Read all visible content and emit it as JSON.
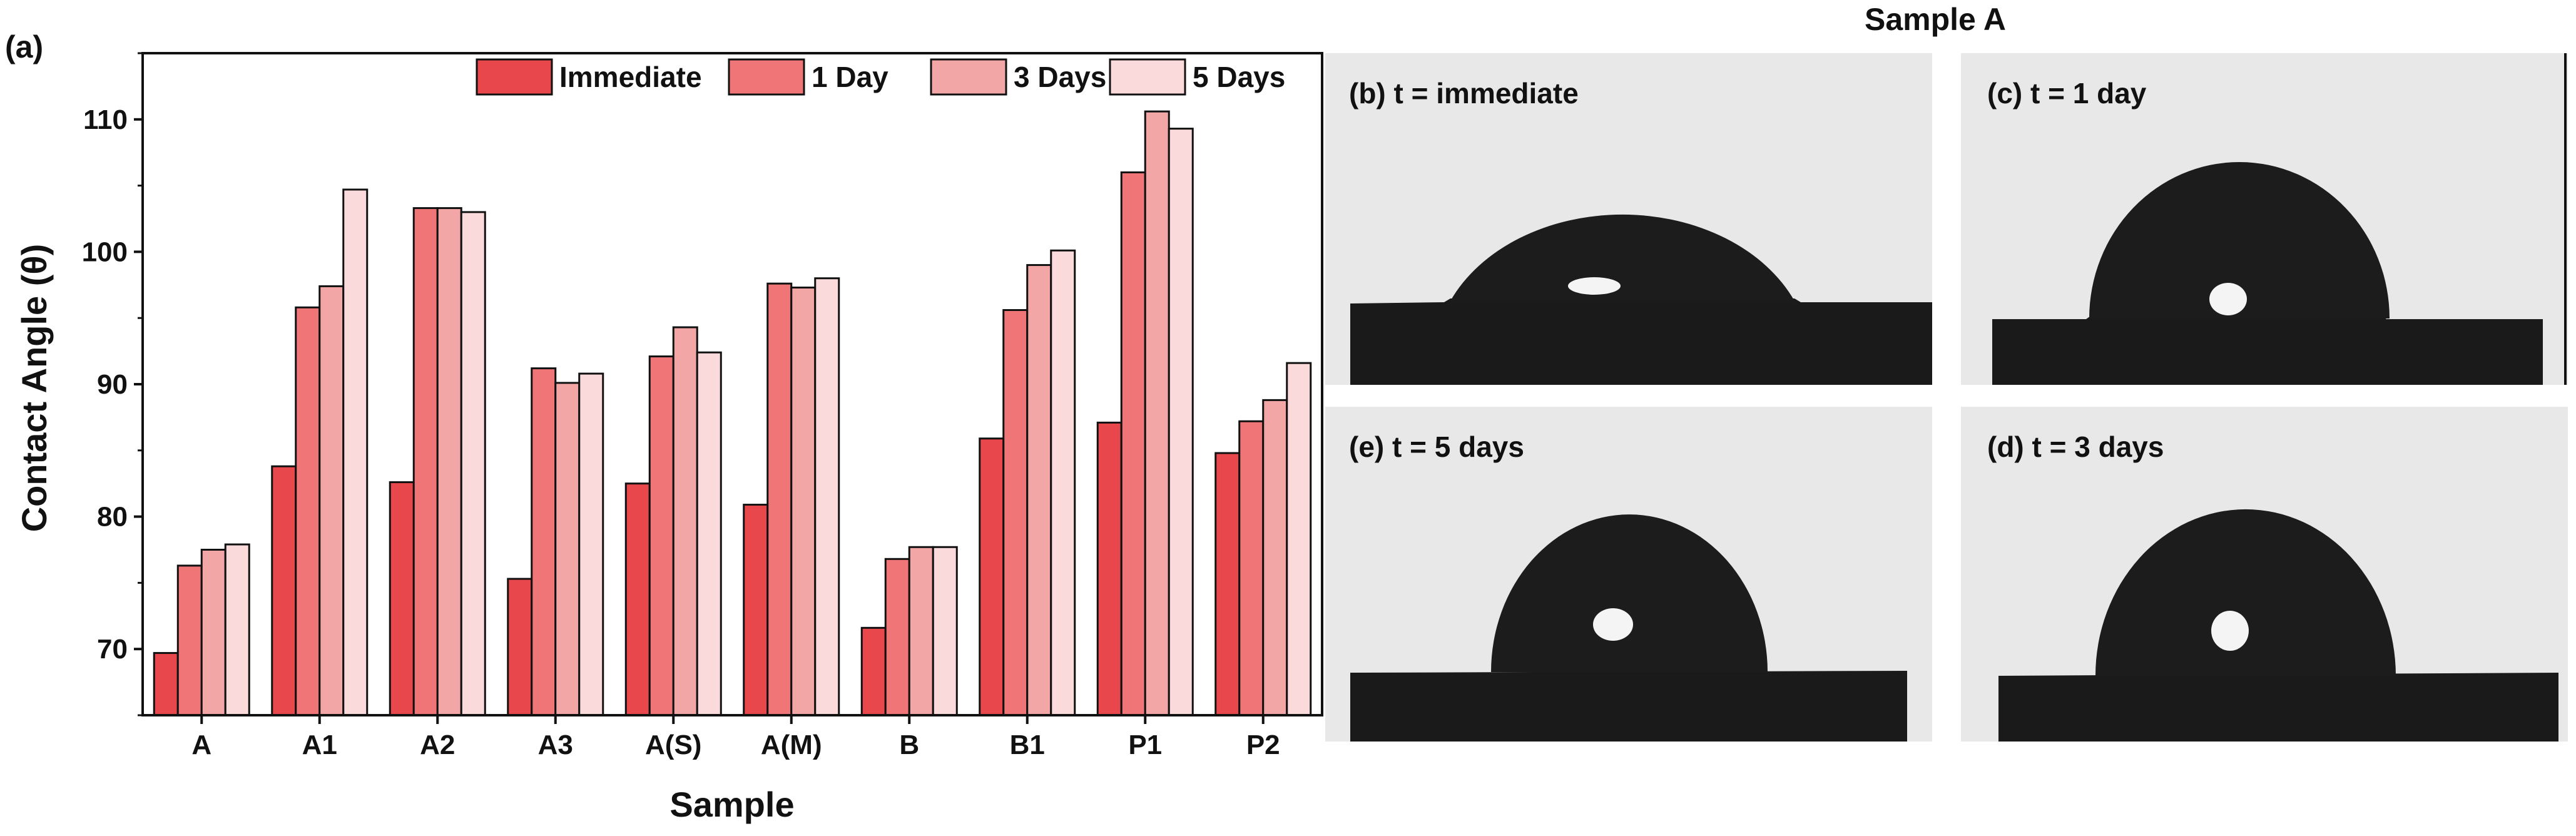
{
  "panel_a_label": "(a)",
  "chart_data": {
    "type": "bar",
    "xlabel": "Sample",
    "ylabel": "Contact Angle (θ)",
    "ylim": [
      65,
      115
    ],
    "yticks": [
      70,
      80,
      90,
      100,
      110
    ],
    "categories": [
      "A",
      "A1",
      "A2",
      "A3",
      "A(S)",
      "A(M)",
      "B",
      "B1",
      "P1",
      "P2"
    ],
    "legend_position": "top",
    "grid": false,
    "series": [
      {
        "name": "Immediate",
        "color": "#e8474b",
        "values": [
          69.7,
          83.8,
          82.6,
          75.3,
          82.5,
          80.9,
          71.6,
          85.9,
          87.1,
          84.8
        ]
      },
      {
        "name": "1 Day",
        "color": "#ef7576",
        "values": [
          76.3,
          95.8,
          103.3,
          91.2,
          92.1,
          97.6,
          76.8,
          95.6,
          106.0,
          87.2
        ]
      },
      {
        "name": "3 Days",
        "color": "#f3a6a6",
        "values": [
          77.5,
          97.4,
          103.3,
          90.1,
          94.3,
          97.3,
          77.7,
          99.0,
          110.6,
          88.8
        ]
      },
      {
        "name": "5 Days",
        "color": "#fadada",
        "values": [
          77.9,
          104.7,
          103.0,
          90.8,
          92.4,
          98.0,
          77.7,
          100.1,
          109.3,
          91.6
        ]
      }
    ]
  },
  "photo_panel": {
    "heading": "Sample A",
    "panels": [
      {
        "id": "b",
        "label": "(b) t = immediate"
      },
      {
        "id": "c",
        "label": "(c) t = 1 day"
      },
      {
        "id": "e",
        "label": "(e) t = 5 days"
      },
      {
        "id": "d",
        "label": "(d) t = 3 days"
      }
    ]
  },
  "colors": {
    "axis": "#111111",
    "bar_edge": "#111111",
    "photo_bg": "#e8e8e8",
    "droplet": "#1c1c1c"
  }
}
